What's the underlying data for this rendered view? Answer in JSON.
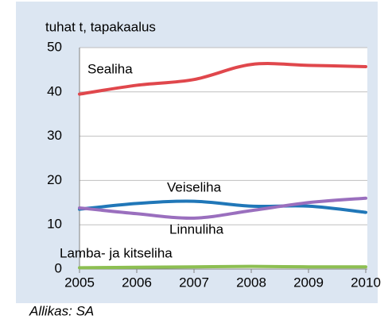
{
  "chart_data": {
    "type": "line",
    "y_axis_label": "tuhat t, tapakaalus",
    "source": "Allikas: SA",
    "categories": [
      "2005",
      "2006",
      "2007",
      "2008",
      "2009",
      "2010"
    ],
    "series": [
      {
        "name": "Sealiha",
        "color": "#e0474c",
        "values": [
          39.5,
          41.5,
          42.8,
          46.2,
          46.0,
          45.7
        ]
      },
      {
        "name": "Veiseliha",
        "color": "#2077b8",
        "values": [
          13.5,
          14.8,
          15.3,
          14.2,
          14.2,
          12.8
        ]
      },
      {
        "name": "Linnuliha",
        "color": "#9a6fbe",
        "values": [
          13.8,
          12.5,
          11.5,
          13.2,
          15.0,
          16.0
        ]
      },
      {
        "name": "Lamba- ja kitseliha",
        "color": "#8dbf52",
        "values": [
          0.3,
          0.4,
          0.5,
          0.6,
          0.5,
          0.5
        ]
      }
    ],
    "ylim": [
      0,
      50
    ],
    "yticks": [
      0,
      10,
      20,
      30,
      40,
      50
    ],
    "grid": true
  }
}
